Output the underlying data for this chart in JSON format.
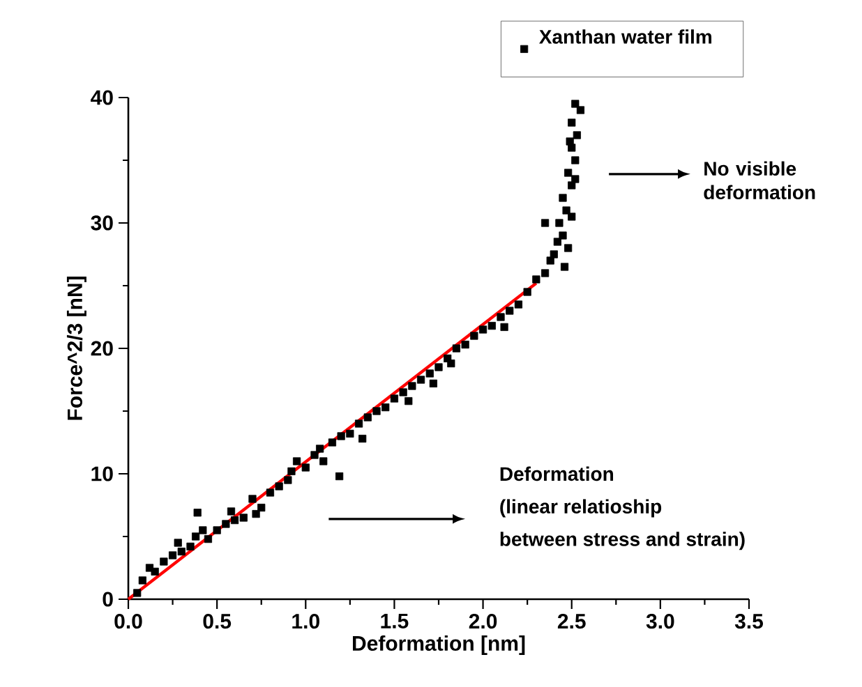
{
  "chart_data": {
    "type": "scatter",
    "xlabel": "Deformation [nm]",
    "ylabel": "Force^2/3 [nN]",
    "xlim": [
      0,
      3.5
    ],
    "xticks": [
      {
        "value": 0,
        "label": "0.0"
      },
      0.5,
      {
        "value": 1,
        "label": "1.0"
      },
      1.5,
      {
        "value": 2,
        "label": "2.0"
      },
      2.5,
      {
        "value": 3,
        "label": "3.0"
      },
      3.5
    ],
    "ylim": [
      0,
      40
    ],
    "yticks": [
      0,
      10,
      20,
      30,
      40
    ],
    "grid": false,
    "legend": "top right",
    "marker": "square",
    "series": [
      {
        "name": "Xanthan water film",
        "color": "#000000",
        "x": [
          0.05,
          0.08,
          0.12,
          0.15,
          0.2,
          0.25,
          0.28,
          0.3,
          0.35,
          0.38,
          0.39,
          0.42,
          0.45,
          0.5,
          0.55,
          0.58,
          0.6,
          0.65,
          0.7,
          0.72,
          0.75,
          0.8,
          0.85,
          0.9,
          0.92,
          0.95,
          1.0,
          1.05,
          1.08,
          1.1,
          1.15,
          1.19,
          1.2,
          1.25,
          1.3,
          1.32,
          1.35,
          1.4,
          1.45,
          1.5,
          1.55,
          1.58,
          1.6,
          1.65,
          1.7,
          1.72,
          1.75,
          1.8,
          1.82,
          1.85,
          1.9,
          1.95,
          2.0,
          2.05,
          2.1,
          2.12,
          2.15,
          2.2,
          2.25,
          2.3,
          2.35,
          2.38,
          2.4,
          2.42,
          2.45,
          2.43,
          2.47,
          2.45,
          2.5,
          2.48,
          2.52,
          2.5,
          2.53,
          2.5,
          2.55,
          2.52,
          2.35,
          2.48,
          2.5,
          2.46,
          2.52,
          2.49
        ],
        "values": [
          0.5,
          1.5,
          2.5,
          2.2,
          3,
          3.5,
          4.5,
          3.8,
          4.2,
          5,
          6.9,
          5.5,
          4.8,
          5.5,
          6,
          7,
          6.3,
          6.5,
          8,
          6.8,
          7.3,
          8.5,
          9,
          9.5,
          10.2,
          11,
          10.5,
          11.5,
          12,
          11,
          12.5,
          9.8,
          13,
          13.2,
          14,
          12.8,
          14.5,
          15,
          15.3,
          16,
          16.5,
          15.8,
          17,
          17.5,
          18,
          17.2,
          18.5,
          19.2,
          18.8,
          20,
          20.3,
          21,
          21.5,
          21.8,
          22.5,
          21.7,
          23,
          23.5,
          24.5,
          25.5,
          26,
          27,
          27.5,
          28.5,
          29,
          30,
          31,
          32,
          33,
          34,
          35,
          36,
          37,
          38,
          39,
          39.5,
          30,
          28,
          30.5,
          26.5,
          33.5,
          36.5
        ]
      },
      {
        "type": "line",
        "color": "#ff0000",
        "marker": "none",
        "x": [
          0,
          2.3
        ],
        "values": [
          0,
          25.2
        ]
      }
    ],
    "annotations": [
      "No visible deformation",
      "Deformation",
      "(linear relatioship",
      "between stress and strain)"
    ]
  }
}
